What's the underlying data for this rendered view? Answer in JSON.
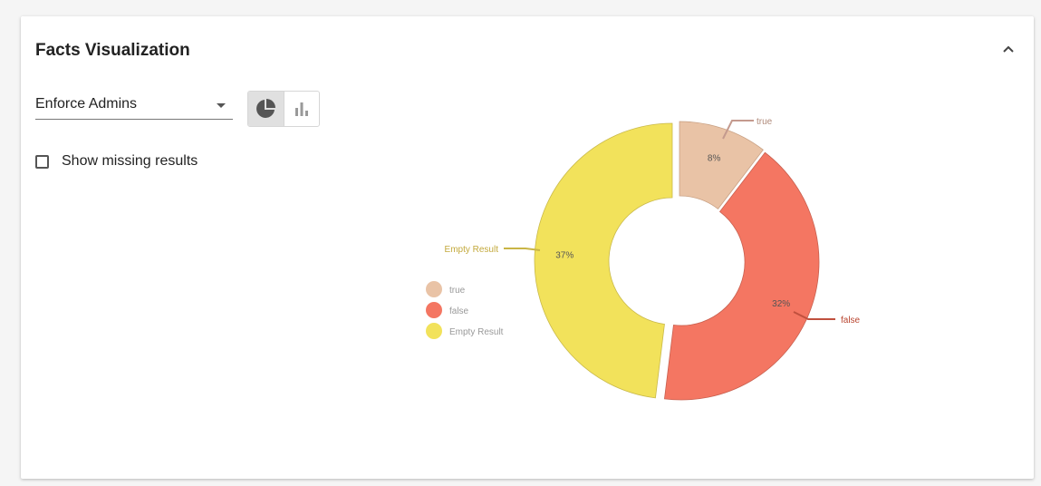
{
  "card": {
    "title": "Facts Visualization"
  },
  "controls": {
    "fact_select_value": "Enforce Admins",
    "show_missing_label": "Show missing results",
    "show_missing_checked": false,
    "view_mode": "pie"
  },
  "icons": {
    "collapse": "chevron-up-icon",
    "pie": "pie-chart-icon",
    "bar": "bar-chart-icon"
  },
  "chart_data": {
    "type": "pie",
    "variant": "donut",
    "categories": [
      "true",
      "false",
      "Empty Result"
    ],
    "values": [
      8,
      32,
      37
    ],
    "data_labels": [
      "8%",
      "32%",
      "37%"
    ],
    "colors": [
      "#e9c3a6",
      "#f47662",
      "#f2e25b"
    ],
    "legend": [
      "true",
      "false",
      "Empty Result"
    ],
    "legend_position": "left"
  }
}
